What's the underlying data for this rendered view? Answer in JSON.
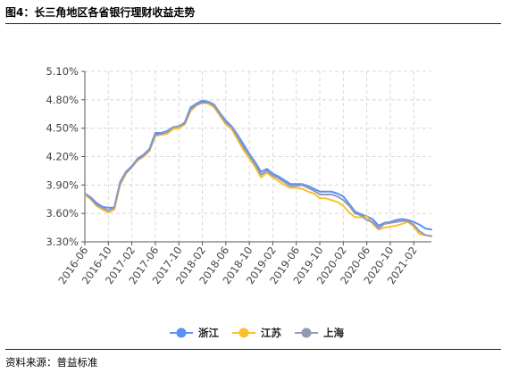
{
  "figure": {
    "title": "图4：长三角地区各省银行理财收益走势",
    "source": "资料来源：普益标准"
  },
  "chart_data": {
    "type": "line",
    "title": "",
    "xlabel": "",
    "ylabel": "",
    "ylim": [
      3.3,
      5.1
    ],
    "yticks": [
      "5.10%",
      "4.80%",
      "4.50%",
      "4.20%",
      "3.90%",
      "3.60%",
      "3.30%"
    ],
    "ytick_values": [
      5.1,
      4.8,
      4.5,
      4.2,
      3.9,
      3.6,
      3.3
    ],
    "xtick_labels": [
      "2016-06",
      "2016-10",
      "2017-02",
      "2017-06",
      "2017-10",
      "2018-02",
      "2018-06",
      "2018-10",
      "2019-02",
      "2019-06",
      "2019-10",
      "2020-02",
      "2020-06",
      "2020-10",
      "2021-02"
    ],
    "x": [
      "2016-06",
      "2016-07",
      "2016-08",
      "2016-09",
      "2016-10",
      "2016-11",
      "2016-12",
      "2017-01",
      "2017-02",
      "2017-03",
      "2017-04",
      "2017-05",
      "2017-06",
      "2017-07",
      "2017-08",
      "2017-09",
      "2017-10",
      "2017-11",
      "2017-12",
      "2018-01",
      "2018-02",
      "2018-03",
      "2018-04",
      "2018-05",
      "2018-06",
      "2018-07",
      "2018-08",
      "2018-09",
      "2018-10",
      "2018-11",
      "2018-12",
      "2019-01",
      "2019-02",
      "2019-03",
      "2019-04",
      "2019-05",
      "2019-06",
      "2019-07",
      "2019-08",
      "2019-09",
      "2019-10",
      "2019-11",
      "2019-12",
      "2020-01",
      "2020-02",
      "2020-03",
      "2020-04",
      "2020-05",
      "2020-06",
      "2020-07",
      "2020-08",
      "2020-09",
      "2020-10",
      "2020-11",
      "2020-12",
      "2021-01",
      "2021-02",
      "2021-03",
      "2021-04",
      "2021-05"
    ],
    "grid": true,
    "legend_position": "bottom",
    "series": [
      {
        "name": "浙江",
        "color": "#5b8ff9",
        "values": [
          3.81,
          3.77,
          3.71,
          3.67,
          3.66,
          3.66,
          3.93,
          4.04,
          4.1,
          4.18,
          4.22,
          4.28,
          4.45,
          4.45,
          4.47,
          4.51,
          4.52,
          4.56,
          4.72,
          4.76,
          4.79,
          4.78,
          4.75,
          4.66,
          4.58,
          4.52,
          4.43,
          4.33,
          4.23,
          4.14,
          4.04,
          4.07,
          4.02,
          3.99,
          3.95,
          3.91,
          3.91,
          3.91,
          3.89,
          3.86,
          3.83,
          3.83,
          3.83,
          3.81,
          3.78,
          3.7,
          3.62,
          3.59,
          3.57,
          3.54,
          3.47,
          3.5,
          3.51,
          3.53,
          3.54,
          3.53,
          3.51,
          3.48,
          3.44,
          3.43
        ]
      },
      {
        "name": "江苏",
        "color": "#fac02e",
        "values": [
          3.8,
          3.75,
          3.68,
          3.64,
          3.61,
          3.64,
          3.9,
          4.02,
          4.09,
          4.16,
          4.2,
          4.26,
          4.42,
          4.43,
          4.44,
          4.49,
          4.5,
          4.54,
          4.68,
          4.74,
          4.77,
          4.76,
          4.72,
          4.63,
          4.54,
          4.49,
          4.38,
          4.27,
          4.18,
          4.09,
          3.98,
          4.03,
          3.98,
          3.94,
          3.9,
          3.87,
          3.87,
          3.86,
          3.83,
          3.81,
          3.76,
          3.76,
          3.74,
          3.72,
          3.68,
          3.61,
          3.56,
          3.56,
          3.57,
          3.49,
          3.43,
          3.45,
          3.46,
          3.47,
          3.49,
          3.51,
          3.46,
          3.38,
          3.37,
          3.36
        ]
      },
      {
        "name": "上海",
        "color": "#909ab5",
        "values": [
          3.81,
          3.76,
          3.69,
          3.66,
          3.63,
          3.66,
          3.92,
          4.03,
          4.09,
          4.17,
          4.21,
          4.27,
          4.43,
          4.44,
          4.46,
          4.51,
          4.52,
          4.55,
          4.7,
          4.75,
          4.77,
          4.77,
          4.74,
          4.65,
          4.56,
          4.51,
          4.41,
          4.3,
          4.21,
          4.12,
          4.01,
          4.05,
          4.0,
          3.97,
          3.93,
          3.89,
          3.89,
          3.9,
          3.87,
          3.84,
          3.8,
          3.8,
          3.8,
          3.78,
          3.74,
          3.68,
          3.6,
          3.58,
          3.53,
          3.51,
          3.44,
          3.49,
          3.5,
          3.51,
          3.52,
          3.52,
          3.48,
          3.41,
          3.37,
          3.36
        ]
      }
    ]
  }
}
